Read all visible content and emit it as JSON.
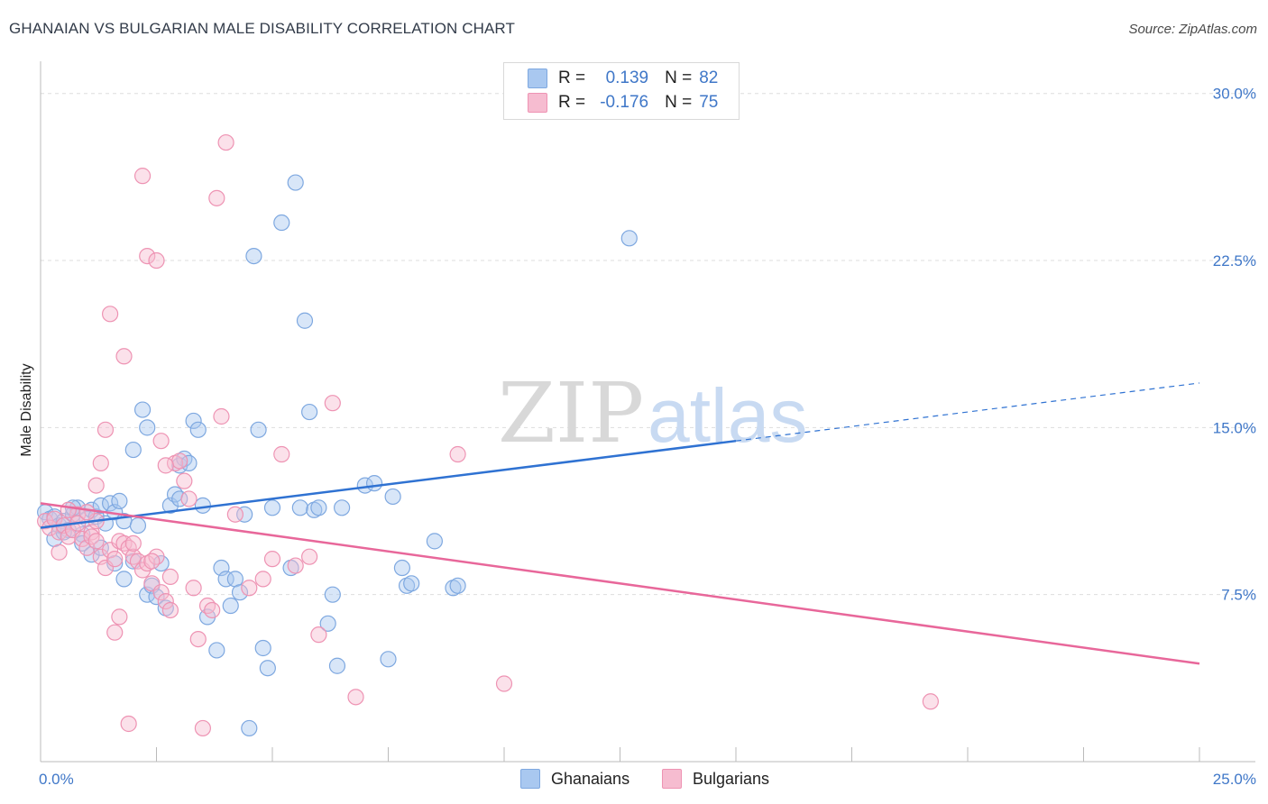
{
  "title": "GHANAIAN VS BULGARIAN MALE DISABILITY CORRELATION CHART",
  "source": "Source: ZipAtlas.com",
  "watermark": {
    "zip": "ZIP",
    "atlas": "atlas"
  },
  "legend": {
    "rows": [
      {
        "r_label": "R =",
        "r_value": "0.139",
        "n_label": "N =",
        "n_value": "82"
      },
      {
        "r_label": "R =",
        "r_value": "-0.176",
        "n_label": "N =",
        "n_value": "75"
      }
    ]
  },
  "bottom_legend": [
    "Ghanaians",
    "Bulgarians"
  ],
  "colors": {
    "blue_fill": "#a9c8f0",
    "blue_stroke": "#7ea8e0",
    "blue_line": "#2f72d2",
    "pink_fill": "#f6bcd0",
    "pink_stroke": "#ee93b3",
    "pink_line": "#e8679a",
    "tick_text": "#3f77c8",
    "grid": "#dddddd"
  },
  "chart_data": {
    "type": "scatter",
    "title": "GHANAIAN VS BULGARIAN MALE DISABILITY CORRELATION CHART",
    "xlabel": "",
    "ylabel": "Male Disability",
    "xlim": [
      0,
      25
    ],
    "ylim": [
      0,
      31
    ],
    "x_tick_labels": [
      "0.0%",
      "25.0%"
    ],
    "y_ticks": [
      7.5,
      15.0,
      22.5,
      30.0
    ],
    "y_tick_labels": [
      "7.5%",
      "15.0%",
      "22.5%",
      "30.0%"
    ],
    "series": [
      {
        "name": "Ghanaians",
        "r": 0.139,
        "n": 82,
        "trend": {
          "x0": 0,
          "y0": 10.5,
          "x1": 15,
          "y1": 14.4,
          "dash_to_x": 25,
          "dash_to_y": 17.0
        },
        "points": [
          [
            0.1,
            11.2
          ],
          [
            0.2,
            10.9
          ],
          [
            0.3,
            11.0
          ],
          [
            0.4,
            10.6
          ],
          [
            0.5,
            10.8
          ],
          [
            0.6,
            10.4
          ],
          [
            0.7,
            11.1
          ],
          [
            0.8,
            11.4
          ],
          [
            0.9,
            10.2
          ],
          [
            1.0,
            10.9
          ],
          [
            1.1,
            11.3
          ],
          [
            1.2,
            11.0
          ],
          [
            1.3,
            11.5
          ],
          [
            1.4,
            10.7
          ],
          [
            1.5,
            11.6
          ],
          [
            1.6,
            11.2
          ],
          [
            1.7,
            11.7
          ],
          [
            1.8,
            10.8
          ],
          [
            0.3,
            10.0
          ],
          [
            0.5,
            10.3
          ],
          [
            0.7,
            11.4
          ],
          [
            0.9,
            9.8
          ],
          [
            1.1,
            9.3
          ],
          [
            1.3,
            9.6
          ],
          [
            1.6,
            8.9
          ],
          [
            1.8,
            8.2
          ],
          [
            2.0,
            9.0
          ],
          [
            2.1,
            10.6
          ],
          [
            2.3,
            7.5
          ],
          [
            2.4,
            7.9
          ],
          [
            2.5,
            7.4
          ],
          [
            2.6,
            8.9
          ],
          [
            2.7,
            6.9
          ],
          [
            2.8,
            11.5
          ],
          [
            2.9,
            12.0
          ],
          [
            3.0,
            13.3
          ],
          [
            3.1,
            13.6
          ],
          [
            3.2,
            13.4
          ],
          [
            3.3,
            15.3
          ],
          [
            3.4,
            14.9
          ],
          [
            2.0,
            14.0
          ],
          [
            2.2,
            15.8
          ],
          [
            2.3,
            15.0
          ],
          [
            3.5,
            11.5
          ],
          [
            3.6,
            6.5
          ],
          [
            3.8,
            5.0
          ],
          [
            3.9,
            8.7
          ],
          [
            4.0,
            8.2
          ],
          [
            4.1,
            7.0
          ],
          [
            4.2,
            8.2
          ],
          [
            4.3,
            7.6
          ],
          [
            4.4,
            11.1
          ],
          [
            4.5,
            1.5
          ],
          [
            4.6,
            22.7
          ],
          [
            4.7,
            14.9
          ],
          [
            4.8,
            5.1
          ],
          [
            4.9,
            4.2
          ],
          [
            5.0,
            11.4
          ],
          [
            5.2,
            24.2
          ],
          [
            5.4,
            8.7
          ],
          [
            5.5,
            26.0
          ],
          [
            5.6,
            11.4
          ],
          [
            5.7,
            19.8
          ],
          [
            5.8,
            15.7
          ],
          [
            5.9,
            11.3
          ],
          [
            6.0,
            11.4
          ],
          [
            6.2,
            6.2
          ],
          [
            6.3,
            7.5
          ],
          [
            6.4,
            4.3
          ],
          [
            6.5,
            11.4
          ],
          [
            7.0,
            12.4
          ],
          [
            7.2,
            12.5
          ],
          [
            7.5,
            4.6
          ],
          [
            7.6,
            11.9
          ],
          [
            7.8,
            8.7
          ],
          [
            7.9,
            7.9
          ],
          [
            8.0,
            8.0
          ],
          [
            8.5,
            9.9
          ],
          [
            8.9,
            7.8
          ],
          [
            9.0,
            7.9
          ],
          [
            12.7,
            23.5
          ],
          [
            3.0,
            11.8
          ]
        ]
      },
      {
        "name": "Bulgarians",
        "r": -0.176,
        "n": 75,
        "trend": {
          "x0": 0,
          "y0": 11.6,
          "x1": 25,
          "y1": 4.4
        },
        "points": [
          [
            0.1,
            10.8
          ],
          [
            0.2,
            10.5
          ],
          [
            0.3,
            10.9
          ],
          [
            0.4,
            10.3
          ],
          [
            0.5,
            10.6
          ],
          [
            0.6,
            10.1
          ],
          [
            0.7,
            10.4
          ],
          [
            0.8,
            11.1
          ],
          [
            0.9,
            10.0
          ],
          [
            1.0,
            9.6
          ],
          [
            1.1,
            10.3
          ],
          [
            1.2,
            10.8
          ],
          [
            1.3,
            9.2
          ],
          [
            1.4,
            8.7
          ],
          [
            1.5,
            9.5
          ],
          [
            1.6,
            9.1
          ],
          [
            1.7,
            9.9
          ],
          [
            1.8,
            9.8
          ],
          [
            1.9,
            9.6
          ],
          [
            2.0,
            9.2
          ],
          [
            2.1,
            9.0
          ],
          [
            2.2,
            8.6
          ],
          [
            2.3,
            8.9
          ],
          [
            2.4,
            8.0
          ],
          [
            2.5,
            9.2
          ],
          [
            2.6,
            7.6
          ],
          [
            2.7,
            7.2
          ],
          [
            2.8,
            6.8
          ],
          [
            2.9,
            13.4
          ],
          [
            3.0,
            13.5
          ],
          [
            3.1,
            12.6
          ],
          [
            3.2,
            11.8
          ],
          [
            3.3,
            7.8
          ],
          [
            3.4,
            5.5
          ],
          [
            3.5,
            1.5
          ],
          [
            3.6,
            7.0
          ],
          [
            3.7,
            6.8
          ],
          [
            3.8,
            25.3
          ],
          [
            3.9,
            15.5
          ],
          [
            4.0,
            27.8
          ],
          [
            1.2,
            12.4
          ],
          [
            1.3,
            13.4
          ],
          [
            1.4,
            14.9
          ],
          [
            1.5,
            20.1
          ],
          [
            1.6,
            5.8
          ],
          [
            1.7,
            6.5
          ],
          [
            1.8,
            18.2
          ],
          [
            1.9,
            1.7
          ],
          [
            2.0,
            9.8
          ],
          [
            2.2,
            26.3
          ],
          [
            2.3,
            22.7
          ],
          [
            2.4,
            9.0
          ],
          [
            2.5,
            22.5
          ],
          [
            2.6,
            14.4
          ],
          [
            2.7,
            13.3
          ],
          [
            2.8,
            8.3
          ],
          [
            4.2,
            11.1
          ],
          [
            4.5,
            7.8
          ],
          [
            4.8,
            8.2
          ],
          [
            5.0,
            9.1
          ],
          [
            5.2,
            13.8
          ],
          [
            5.5,
            8.8
          ],
          [
            5.8,
            9.2
          ],
          [
            6.0,
            5.7
          ],
          [
            6.3,
            16.1
          ],
          [
            6.8,
            2.9
          ],
          [
            9.0,
            13.8
          ],
          [
            10.0,
            3.5
          ],
          [
            19.2,
            2.7
          ],
          [
            0.4,
            9.4
          ],
          [
            0.6,
            11.3
          ],
          [
            0.8,
            10.7
          ],
          [
            1.0,
            11.2
          ],
          [
            1.1,
            10.1
          ],
          [
            1.2,
            9.9
          ]
        ]
      }
    ]
  }
}
